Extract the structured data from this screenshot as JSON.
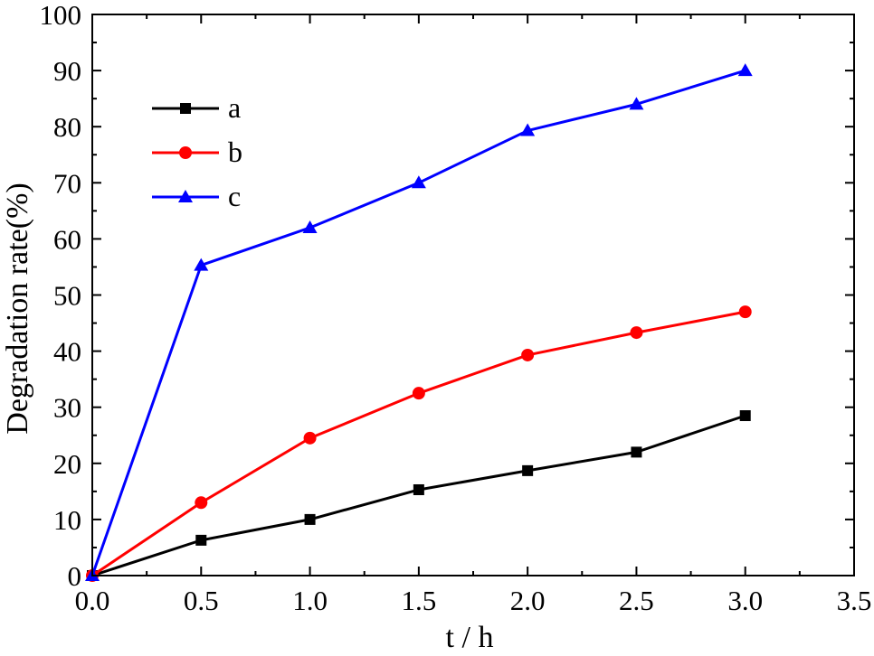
{
  "chart_data": {
    "type": "line",
    "xlabel": "t / h",
    "ylabel": "Degradation rate(%)",
    "xlim": [
      0,
      3.5
    ],
    "ylim": [
      0,
      100
    ],
    "xticks": [
      "0.0",
      "0.5",
      "1.0",
      "1.5",
      "2.0",
      "2.5",
      "3.0",
      "3.5"
    ],
    "yticks": [
      "0",
      "10",
      "20",
      "30",
      "40",
      "50",
      "60",
      "70",
      "80",
      "90",
      "100"
    ],
    "legend_position": "top-left",
    "grid": false,
    "x": [
      0,
      0.5,
      1.0,
      1.5,
      2.0,
      2.5,
      3.0
    ],
    "series": [
      {
        "name": "a",
        "color": "#000000",
        "marker": "square",
        "values": [
          0,
          6.3,
          10.0,
          15.3,
          18.7,
          22.0,
          28.5
        ]
      },
      {
        "name": "b",
        "color": "#ff0000",
        "marker": "circle",
        "values": [
          0,
          13.0,
          24.5,
          32.5,
          39.3,
          43.3,
          47.0
        ]
      },
      {
        "name": "c",
        "color": "#0000ff",
        "marker": "triangle",
        "values": [
          0,
          55.3,
          62.0,
          70.0,
          79.3,
          84.0,
          90.0
        ]
      }
    ]
  }
}
